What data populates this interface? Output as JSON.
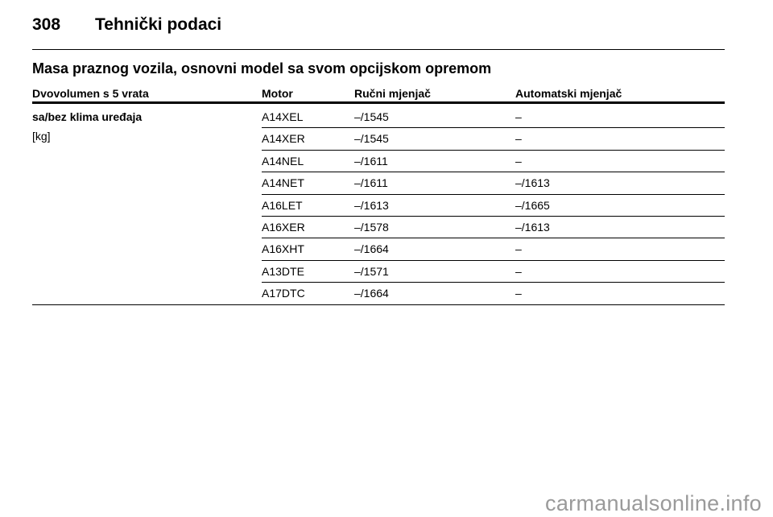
{
  "header": {
    "page_number": "308",
    "title": "Tehnički podaci"
  },
  "section": {
    "title": "Masa praznog vozila, osnovni model sa svom opcijskom opremom"
  },
  "table": {
    "columns": [
      "Dvovolumen s 5 vrata",
      "Motor",
      "Ručni mjenjač",
      "Automatski mjenjač"
    ],
    "group_label": "sa/bez klima uređaja",
    "unit": "[kg]",
    "rows": [
      [
        "A14XEL",
        "–/1545",
        "–"
      ],
      [
        "A14XER",
        "–/1545",
        "–"
      ],
      [
        "A14NEL",
        "–/1611",
        "–"
      ],
      [
        "A14NET",
        "–/1611",
        "–/1613"
      ],
      [
        "A16LET",
        "–/1613",
        "–/1665"
      ],
      [
        "A16XER",
        "–/1578",
        "–/1613"
      ],
      [
        "A16XHT",
        "–/1664",
        "–"
      ],
      [
        "A13DTE",
        "–/1571",
        "–"
      ],
      [
        "A17DTC",
        "–/1664",
        "–"
      ]
    ]
  },
  "watermark": "carmanualsonline.info"
}
